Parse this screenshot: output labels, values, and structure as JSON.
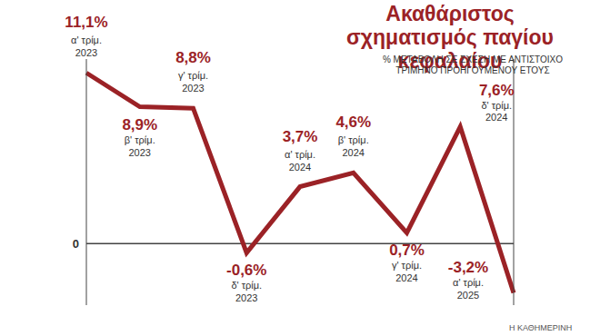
{
  "chart_data": {
    "type": "line",
    "title": "Ακαθάριστος σχηματισμός παγίου κεφαλαίου",
    "subtitle": "% ΜΕΤΑΒΟΛΗ ΣΕ ΣΧΕΣΗ ΜΕ ΑΝΤΙΣΤΟΙΧΟ ΤΡΙΜΗΝΟ ΠΡΟΗΓΟΥΜΕΝΟΥ ΕΤΟΥΣ",
    "annotations": [
      "Η ΚΑΘΗΜΕΡΙΝΗ"
    ],
    "categories": [
      "α' τρίμ. 2023",
      "β' τρίμ. 2023",
      "γ' τρίμ. 2023",
      "δ' τρίμ. 2023",
      "α' τρίμ. 2024",
      "β' τρίμ. 2024",
      "γ' τρίμ. 2024",
      "δ' τρίμ. 2024",
      "α' τρίμ. 2025"
    ],
    "values": [
      11.1,
      8.9,
      8.8,
      -0.6,
      3.7,
      4.6,
      0.7,
      7.6,
      -3.2
    ],
    "value_labels": [
      "11,1%",
      "8,9%",
      "8,8%",
      "-0,6%",
      "3,7%",
      "4,6%",
      "0,7%",
      "7,6%",
      "-3,2%"
    ],
    "color": "#9b2226",
    "ylim": [
      -4,
      12
    ],
    "yticks": [
      0
    ],
    "grid": false,
    "data_labels": true,
    "tick_labels": "y",
    "marker": "none",
    "line_style": "solid"
  }
}
